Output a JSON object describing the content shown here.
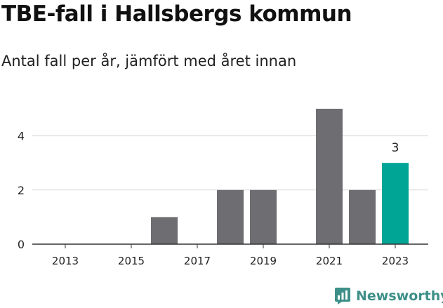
{
  "header": {
    "title": "TBE-fall i Hallsbergs kommun",
    "subtitle": "Antal fall per år, jämfört med året innan"
  },
  "branding": {
    "name": "Newsworthy",
    "icon": "newsworthy-logo-icon",
    "color": "#3d8f88"
  },
  "colors": {
    "bar": "#6e6d72",
    "highlight": "#00a595",
    "grid": "#d9d9d9",
    "axis": "#333333"
  },
  "chart_data": {
    "type": "bar",
    "categories": [
      "2013",
      "2014",
      "2015",
      "2016",
      "2017",
      "2018",
      "2019",
      "2020",
      "2021",
      "2022",
      "2023"
    ],
    "values": [
      0,
      0,
      0,
      1,
      0,
      2,
      2,
      0,
      5,
      2,
      3
    ],
    "x_tick_labels": [
      "2013",
      "2015",
      "2017",
      "2019",
      "2021",
      "2023"
    ],
    "y_ticks": [
      0,
      2,
      4
    ],
    "ylim": [
      0,
      5
    ],
    "highlight_category": "2023",
    "highlight_label": "3",
    "title": "TBE-fall i Hallsbergs kommun",
    "subtitle": "Antal fall per år, jämfört med året innan",
    "xlabel": "",
    "ylabel": "",
    "grid": true,
    "legend": "none"
  }
}
